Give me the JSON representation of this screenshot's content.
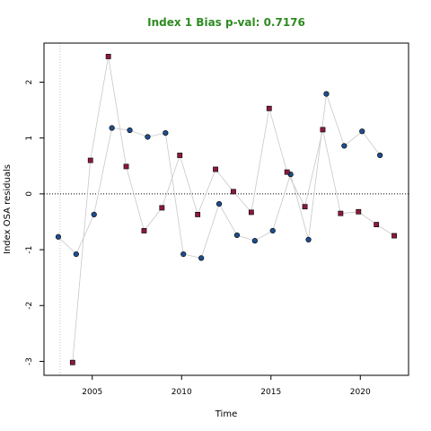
{
  "chart_data": {
    "type": "scatter",
    "title": "Index 1 Bias p-val: 0.7176",
    "xlabel": "Time",
    "ylabel": "Index OSA residuals",
    "xlim": [
      2002.3,
      2022.7
    ],
    "ylim": [
      -3.25,
      2.7
    ],
    "x_ticks": [
      2005,
      2010,
      2015,
      2020
    ],
    "y_ticks": [
      -3,
      -2,
      -1,
      0,
      1,
      2
    ],
    "zero_line": 0,
    "vertical_guide_x": 2003.2,
    "colors": {
      "title": "#2e8b22",
      "series_a": "#1f4e8c",
      "series_b": "#8b1a3a",
      "connector": "#c8c8c8"
    },
    "series": [
      {
        "marker": "circle",
        "x": [
          2003.1,
          2004.1,
          2005.1,
          2006.1,
          2007.1,
          2008.1,
          2009.1,
          2010.1,
          2011.1,
          2012.1,
          2013.1,
          2014.1,
          2015.1,
          2016.1,
          2017.1,
          2018.1,
          2019.1,
          2020.1,
          2021.1
        ],
        "y": [
          -0.77,
          -1.08,
          -0.37,
          1.18,
          1.14,
          1.02,
          1.09,
          -1.08,
          -1.15,
          -0.18,
          -0.74,
          -0.84,
          -0.66,
          0.35,
          -0.82,
          1.79,
          0.86,
          1.12,
          0.69
        ]
      },
      {
        "marker": "square",
        "x": [
          2003.9,
          2004.9,
          2005.9,
          2006.9,
          2007.9,
          2008.9,
          2009.9,
          2010.9,
          2011.9,
          2012.9,
          2013.9,
          2014.9,
          2015.9,
          2016.9,
          2017.9,
          2018.9,
          2019.9,
          2020.9,
          2021.9
        ],
        "y": [
          -3.02,
          0.6,
          2.46,
          0.49,
          -0.66,
          -0.25,
          0.69,
          -0.37,
          0.44,
          0.04,
          -0.33,
          1.53,
          0.39,
          -0.23,
          1.15,
          -0.35,
          -0.32,
          -0.55,
          -0.75
        ]
      }
    ]
  }
}
